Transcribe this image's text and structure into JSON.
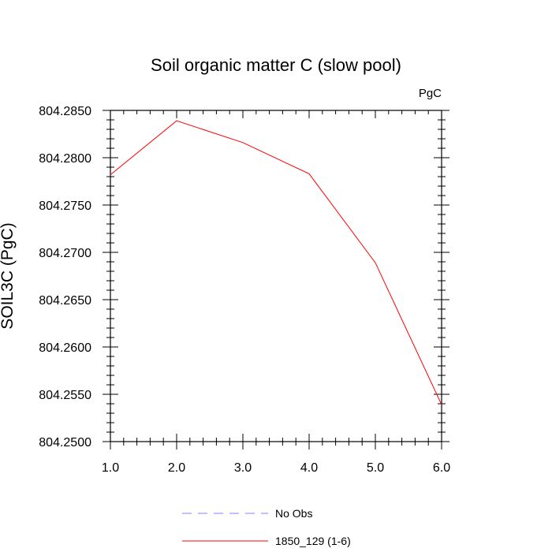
{
  "chart_data": {
    "type": "line",
    "title": "Soil organic matter C (slow pool)",
    "unit_label": "PgC",
    "xlabel": "",
    "ylabel": "SOIL3C  (PgC)",
    "xlim": [
      1.0,
      6.0
    ],
    "ylim": [
      804.25,
      804.285
    ],
    "x_ticks": [
      1.0,
      2.0,
      3.0,
      4.0,
      5.0,
      6.0
    ],
    "x_tick_labels": [
      "1.0",
      "2.0",
      "3.0",
      "4.0",
      "5.0",
      "6.0"
    ],
    "y_ticks": [
      804.25,
      804.255,
      804.26,
      804.265,
      804.27,
      804.275,
      804.28,
      804.285
    ],
    "y_tick_labels": [
      "804.2500",
      "804.2550",
      "804.2600",
      "804.2650",
      "804.2700",
      "804.2750",
      "804.2800",
      "804.2850"
    ],
    "grid": false,
    "legend_position": "bottom",
    "series": [
      {
        "name": "No Obs",
        "color": "#8080ff",
        "dashed": true,
        "x": [],
        "y": []
      },
      {
        "name": "1850_129 (1-6)",
        "color": "#ff0000",
        "dashed": false,
        "x": [
          1.0,
          2.0,
          3.0,
          4.0,
          5.0,
          6.0
        ],
        "y": [
          804.2782,
          804.2839,
          804.2816,
          804.2783,
          804.2689,
          804.2539
        ]
      }
    ]
  }
}
